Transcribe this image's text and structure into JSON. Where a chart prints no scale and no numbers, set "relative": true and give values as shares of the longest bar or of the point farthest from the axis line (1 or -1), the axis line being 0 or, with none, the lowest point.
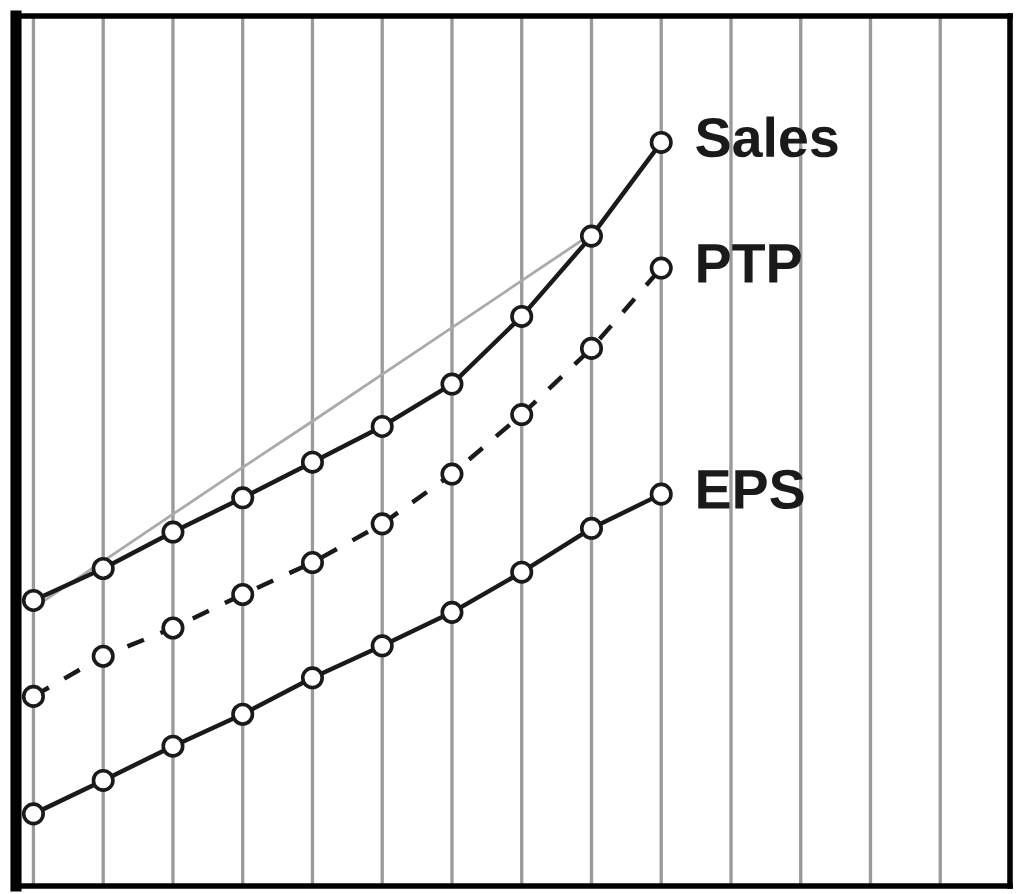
{
  "chart_data": {
    "type": "line",
    "relative": true,
    "grid": "x",
    "marker": "circle",
    "categories": [
      null,
      null,
      null,
      null,
      null,
      null,
      null,
      null,
      null,
      null
    ],
    "series": [
      {
        "name": "Sales",
        "color": "#1a1a1a",
        "line_style": "solid",
        "values": [
          0.384,
          0.427,
          0.476,
          0.522,
          0.57,
          0.618,
          0.675,
          0.766,
          0.874,
          1.0
        ]
      },
      {
        "name": "PTP",
        "color": "#1a1a1a",
        "line_style": "dashed",
        "values": [
          0.255,
          0.309,
          0.347,
          0.392,
          0.435,
          0.487,
          0.554,
          0.634,
          0.723,
          0.831
        ]
      },
      {
        "name": "EPS",
        "color": "#1a1a1a",
        "line_style": "solid",
        "values": [
          0.097,
          0.142,
          0.188,
          0.231,
          0.28,
          0.323,
          0.368,
          0.422,
          0.481,
          0.527
        ]
      },
      {
        "color": "#aaaaaa",
        "line_style": "solid",
        "marker": "none",
        "values": [
          0.374,
          0.437,
          0.5,
          0.563,
          0.625,
          0.688,
          0.751,
          0.814,
          0.877,
          null
        ]
      }
    ]
  }
}
